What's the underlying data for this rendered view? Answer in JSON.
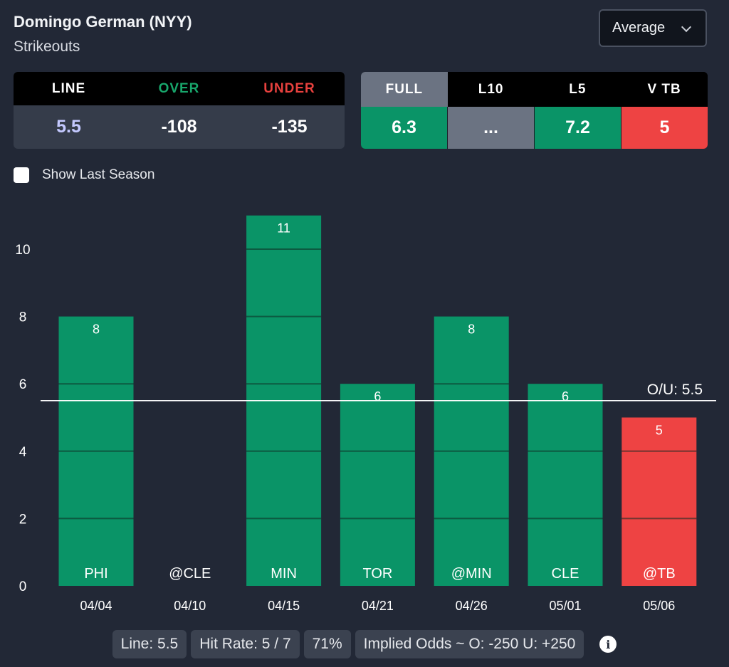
{
  "header": {
    "player": "Domingo German (NYY)",
    "stat": "Strikeouts",
    "dropdown_value": "Average"
  },
  "odds": {
    "headers": [
      "LINE",
      "OVER",
      "UNDER"
    ],
    "values": [
      "5.5",
      "-108",
      "-135"
    ]
  },
  "averages": {
    "headers": [
      "FULL",
      "L10",
      "L5",
      "V TB"
    ],
    "values": [
      "6.3",
      "...",
      "7.2",
      "5"
    ],
    "active_tab": "FULL"
  },
  "show_last_season_label": "Show Last Season",
  "colors": {
    "over": "#0a9467",
    "under": "#ee4343",
    "neutral": "#6b7382",
    "background": "#222836"
  },
  "chart_data": {
    "type": "bar",
    "categories": [
      "04/04",
      "04/10",
      "04/15",
      "04/21",
      "04/26",
      "05/01",
      "05/06"
    ],
    "opponents": [
      "PHI",
      "@CLE",
      "MIN",
      "TOR",
      "@MIN",
      "CLE",
      "@TB"
    ],
    "values": [
      8,
      0,
      11,
      6,
      8,
      6,
      5
    ],
    "line": 5.5,
    "line_label": "O/U: 5.5",
    "yticks": [
      0,
      2,
      4,
      6,
      8,
      10
    ],
    "ylim": [
      0,
      11.5
    ],
    "grid": false
  },
  "footer": {
    "line": "Line: 5.5",
    "hit_rate": "Hit Rate: 5 / 7",
    "pct": "71%",
    "implied": "Implied Odds ~ O: -250 U: +250"
  }
}
